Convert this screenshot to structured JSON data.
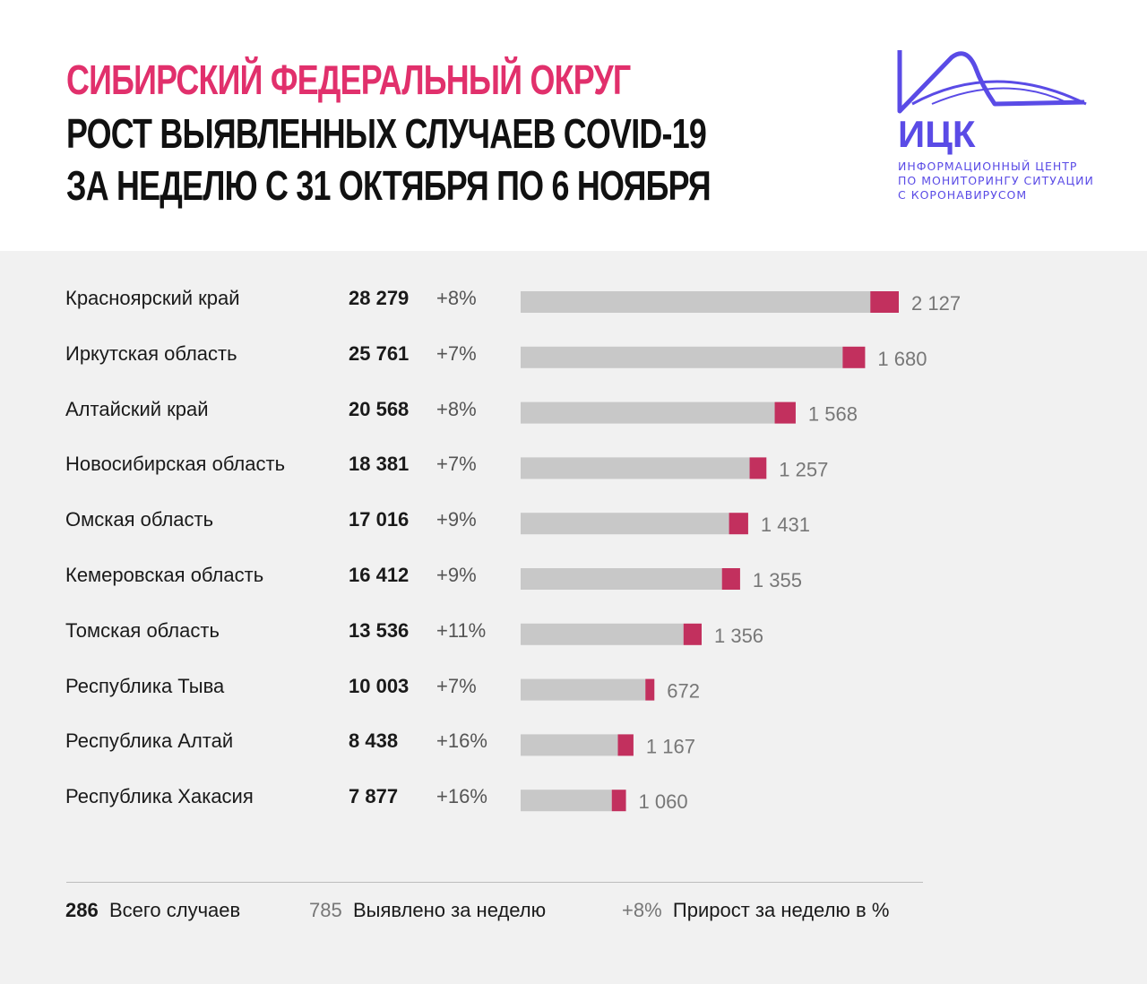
{
  "header": {
    "line1": "СИБИРСКИЙ ФЕДЕРАЛЬНЫЙ ОКРУГ",
    "line2": "РОСТ ВЫЯВЛЕННЫХ СЛУЧАЕВ COVID-19",
    "line3": "ЗА НЕДЕЛЮ С 31 ОКТЯБРЯ ПО 6 НОЯБРЯ"
  },
  "logo": {
    "abbr": "ИЦК",
    "line1": "ИНФОРМАЦИОННЫЙ ЦЕНТР",
    "line2": "ПО МОНИТОРИНГУ СИТУАЦИИ",
    "line3": "С КОРОНАВИРУСОМ",
    "color": "#5a4be6"
  },
  "colors": {
    "accent": "#e1306c",
    "bar_gray": "#c8c8c8",
    "bar_new": "#c2305e",
    "panel": "#f1f1f1"
  },
  "chart_data": {
    "type": "bar",
    "orientation": "horizontal",
    "stacked": true,
    "rows": [
      {
        "region": "Красноярский край",
        "total_label": "28 279",
        "pct_label": "+8%",
        "new_label": "2 127",
        "total": 28279,
        "new": 2127
      },
      {
        "region": "Иркутская область",
        "total_label": "25 761",
        "pct_label": "+7%",
        "new_label": "1 680",
        "total": 25761,
        "new": 1680
      },
      {
        "region": "Алтайский край",
        "total_label": "20 568",
        "pct_label": "+8%",
        "new_label": "1 568",
        "total": 20568,
        "new": 1568
      },
      {
        "region": "Новосибирская область",
        "total_label": "18 381",
        "pct_label": "+7%",
        "new_label": "1 257",
        "total": 18381,
        "new": 1257
      },
      {
        "region": "Омская область",
        "total_label": "17 016",
        "pct_label": "+9%",
        "new_label": "1 431",
        "total": 17016,
        "new": 1431
      },
      {
        "region": "Кемеровская область",
        "total_label": "16 412",
        "pct_label": "+9%",
        "new_label": "1 355",
        "total": 16412,
        "new": 1355
      },
      {
        "region": "Томская область",
        "total_label": "13 536",
        "pct_label": "+11%",
        "new_label": "1 356",
        "total": 13536,
        "new": 1356
      },
      {
        "region": "Республика Тыва",
        "total_label": "10 003",
        "pct_label": "+7%",
        "new_label": "672",
        "total": 10003,
        "new": 672
      },
      {
        "region": "Республика Алтай",
        "total_label": "8 438",
        "pct_label": "+16%",
        "new_label": "1 167",
        "total": 8438,
        "new": 1167
      },
      {
        "region": "Республика Хакасия",
        "total_label": "7 877",
        "pct_label": "+16%",
        "new_label": "1 060",
        "total": 7877,
        "new": 1060
      }
    ],
    "xmax": 28279
  },
  "legend": {
    "total_value": "286",
    "total_text": "Всего случаев",
    "week_value": "785",
    "week_text": "Выявлено за неделю",
    "growth_value": "+8%",
    "growth_text": "Прирост за неделю в %"
  }
}
